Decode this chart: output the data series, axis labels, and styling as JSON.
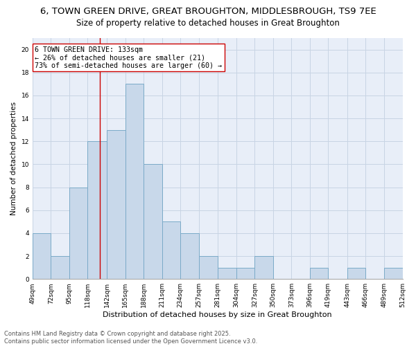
{
  "title1": "6, TOWN GREEN DRIVE, GREAT BROUGHTON, MIDDLESBROUGH, TS9 7EE",
  "title2": "Size of property relative to detached houses in Great Broughton",
  "xlabel": "Distribution of detached houses by size in Great Broughton",
  "ylabel": "Number of detached properties",
  "bin_edges": [
    49,
    72,
    95,
    118,
    142,
    165,
    188,
    211,
    234,
    257,
    281,
    304,
    327,
    350,
    373,
    396,
    419,
    443,
    466,
    489,
    512
  ],
  "bar_heights": [
    4,
    2,
    8,
    12,
    13,
    17,
    10,
    5,
    4,
    2,
    1,
    1,
    2,
    0,
    0,
    1,
    0,
    1,
    0,
    1
  ],
  "bar_color": "#c8d8ea",
  "bar_edge_color": "#7aaac8",
  "bar_linewidth": 0.7,
  "red_line_x": 133,
  "red_line_color": "#cc0000",
  "annotation_text": "6 TOWN GREEN DRIVE: 133sqm\n← 26% of detached houses are smaller (21)\n73% of semi-detached houses are larger (60) →",
  "annotation_box_edge": "#cc0000",
  "annotation_fontsize": 7.2,
  "ylim": [
    0,
    21
  ],
  "yticks": [
    0,
    2,
    4,
    6,
    8,
    10,
    12,
    14,
    16,
    18,
    20
  ],
  "grid_color": "#c8d4e4",
  "background_color": "#e8eef8",
  "footer_text": "Contains HM Land Registry data © Crown copyright and database right 2025.\nContains public sector information licensed under the Open Government Licence v3.0.",
  "title_fontsize": 9.5,
  "subtitle_fontsize": 8.5,
  "xlabel_fontsize": 8,
  "ylabel_fontsize": 7.5,
  "tick_fontsize": 6.5,
  "footer_fontsize": 6
}
